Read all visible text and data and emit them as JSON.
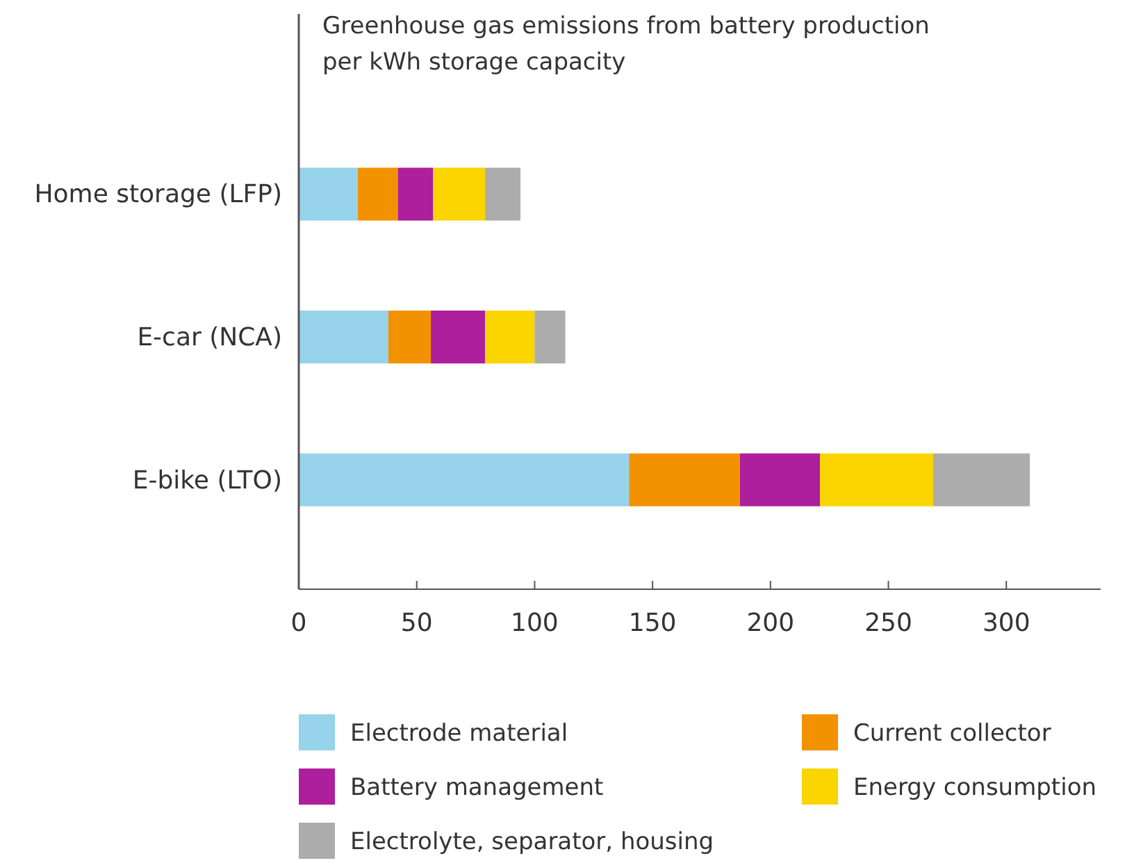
{
  "chart_data": {
    "type": "bar",
    "orientation": "horizontal",
    "stacked": true,
    "title": "Greenhouse gas emissions from battery production per kWh storage capacity",
    "categories": [
      "Home storage (LFP)",
      "E-car (NCA)",
      "E-bike (LTO)"
    ],
    "series": [
      {
        "name": "Electrode material",
        "color": "#97d3ea",
        "values": [
          25,
          38,
          140
        ]
      },
      {
        "name": "Current collector",
        "color": "#f39200",
        "values": [
          17,
          18,
          47
        ]
      },
      {
        "name": "Battery management",
        "color": "#ad1f9c",
        "values": [
          15,
          23,
          34
        ]
      },
      {
        "name": "Energy consumption",
        "color": "#fad500",
        "values": [
          22,
          21,
          48
        ]
      },
      {
        "name": "Electrolyte, separator, housing",
        "color": "#acacac",
        "values": [
          15,
          13,
          41
        ]
      }
    ],
    "xlim": [
      0,
      340
    ],
    "xticks": [
      0,
      50,
      100,
      150,
      200,
      250,
      300
    ],
    "grid": false,
    "legend": "bottom"
  }
}
